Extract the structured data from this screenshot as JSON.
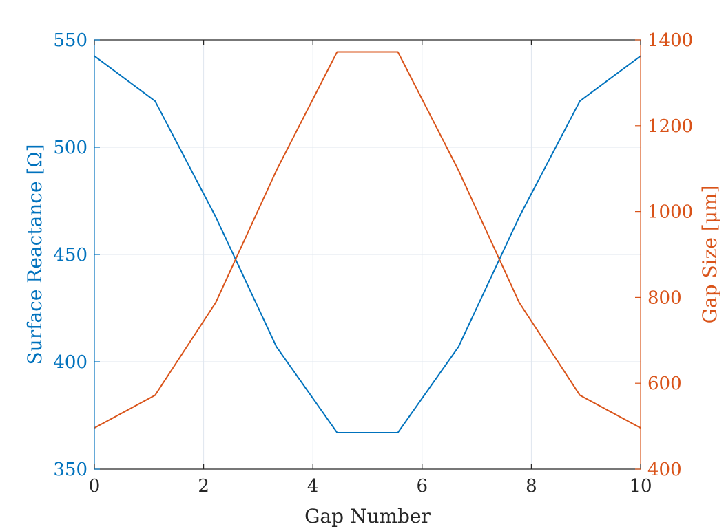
{
  "chart_data": {
    "type": "line",
    "title": "",
    "xlabel": "Gap Number",
    "ylabel_left": "Surface Reactance [Ω]",
    "ylabel_right": "Gap Size [μm]",
    "xlim": [
      0,
      10
    ],
    "ylim_left": [
      350,
      550
    ],
    "ylim_right": [
      400,
      1400
    ],
    "xticks": [
      0,
      2,
      4,
      6,
      8,
      10
    ],
    "yticks_left": [
      350,
      400,
      450,
      500,
      550
    ],
    "yticks_right": [
      400,
      600,
      800,
      1000,
      1200,
      1400
    ],
    "grid": true,
    "colors": {
      "left_axis": "#0072BD",
      "right_axis": "#D95319",
      "text": "#262626",
      "grid": "#dfe6ee",
      "frame": "#262626"
    },
    "series": [
      {
        "axis": "left",
        "color": "#0072BD",
        "x": [
          0,
          1.111,
          2.222,
          3.333,
          4.444,
          5.556,
          6.667,
          7.778,
          8.889,
          10
        ],
        "y": [
          542.5,
          521.5,
          467.5,
          407,
          367,
          367,
          407,
          467.5,
          521.5,
          542.5
        ]
      },
      {
        "axis": "right",
        "color": "#D95319",
        "x": [
          0,
          1.111,
          2.222,
          3.333,
          4.444,
          5.556,
          6.667,
          7.778,
          8.889,
          10
        ],
        "y": [
          496,
          572,
          788,
          1096,
          1372,
          1372,
          1096,
          788,
          572,
          496
        ]
      }
    ]
  }
}
